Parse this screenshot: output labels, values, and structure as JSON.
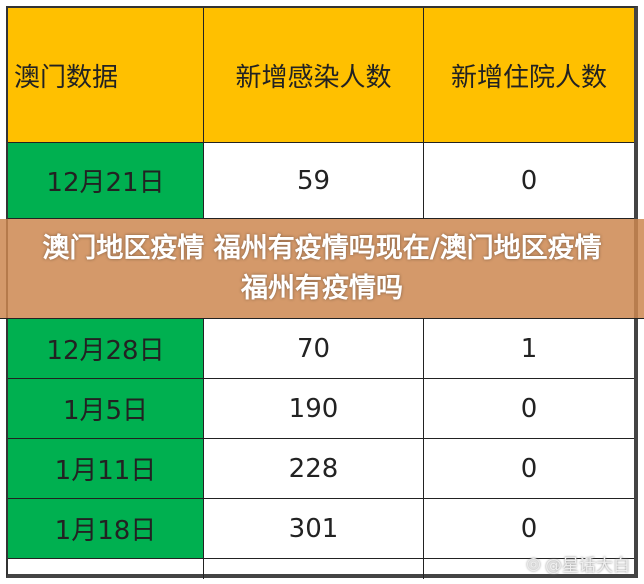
{
  "table": {
    "headers": [
      "澳门数据",
      "新增感染人数",
      "新增住院人数"
    ],
    "rows": [
      [
        "12月21日",
        "59",
        "0"
      ],
      [
        "12月28日",
        "70",
        "1"
      ],
      [
        "1月5日",
        "190",
        "0"
      ],
      [
        "1月11日",
        "228",
        "0"
      ],
      [
        "1月18日",
        "301",
        "0"
      ],
      [
        "",
        "",
        ""
      ]
    ]
  },
  "overlay_title": "澳门地区疫情 福州有疫情吗现在/澳门地区疫情 福州有疫情吗",
  "watermark": "@星话大白",
  "colors": {
    "header": "#ffc000",
    "date_column": "#00b050",
    "overlay": "#cd8750"
  }
}
